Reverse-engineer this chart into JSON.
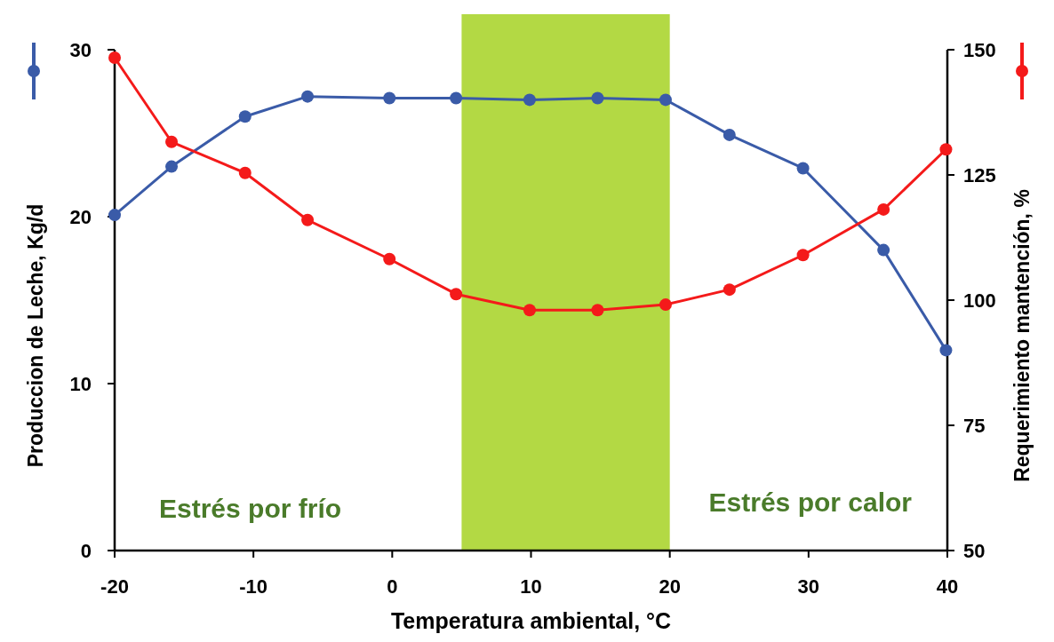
{
  "chart_data": {
    "type": "line",
    "xlabel": "Temperatura ambiental, °C",
    "ylabel": "Produccion de Leche, Kg/d",
    "y2label": "Requerimiento mantención, %",
    "xlim": [
      -20,
      40
    ],
    "xticks": [
      -20,
      -10,
      0,
      10,
      20,
      30,
      40
    ],
    "ylim": [
      0,
      30
    ],
    "yticks": [
      0,
      10,
      20,
      30
    ],
    "y2lim": [
      50,
      150
    ],
    "y2ticks": [
      50,
      75,
      100,
      125,
      150
    ],
    "grid": false,
    "marker": "circle",
    "line_style": "solid",
    "bands": [
      {
        "axis": "x",
        "from": 5,
        "to": 20,
        "color": "#b3d944"
      }
    ],
    "annotations": [
      "Estrés por frío",
      "Estrés por calor"
    ],
    "series": [
      {
        "color": "#3a5ba8",
        "x": [
          -20,
          -15.9,
          -10.6,
          -6.1,
          -0.2,
          4.6,
          9.9,
          14.8,
          19.7,
          24.3,
          29.6,
          35.4,
          39.9
        ],
        "values": [
          20.1,
          23.0,
          26.0,
          27.2,
          27.1,
          27.1,
          27.0,
          27.1,
          27.0,
          24.9,
          22.9,
          18.0,
          12.0
        ]
      },
      {
        "color": "#f41a1a",
        "axis": "y2",
        "x": [
          -20,
          -15.9,
          -10.6,
          -6.1,
          -0.2,
          4.6,
          9.9,
          14.8,
          19.7,
          24.3,
          29.6,
          35.4,
          39.9
        ],
        "values": [
          148.4,
          131.6,
          125.4,
          116.0,
          108.2,
          101.2,
          98.0,
          98.0,
          99.1,
          102.1,
          109.0,
          118.1,
          130.1
        ]
      }
    ]
  }
}
